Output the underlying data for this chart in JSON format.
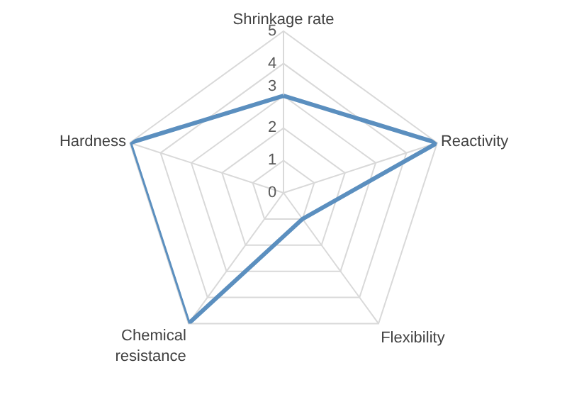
{
  "chart_data": {
    "type": "radar",
    "categories": [
      "Shrinkage rate",
      "Reactivity",
      "Flexibility",
      "Chemical resistance",
      "Hardness"
    ],
    "series": [
      {
        "color": "#5b8fbf",
        "values": [
          3,
          5,
          1,
          5,
          5
        ]
      }
    ],
    "ylim": [
      0,
      5
    ],
    "yticks": [
      0,
      1,
      2,
      3,
      4,
      5
    ],
    "grid": true,
    "marker": "none",
    "line_style": "solid"
  }
}
